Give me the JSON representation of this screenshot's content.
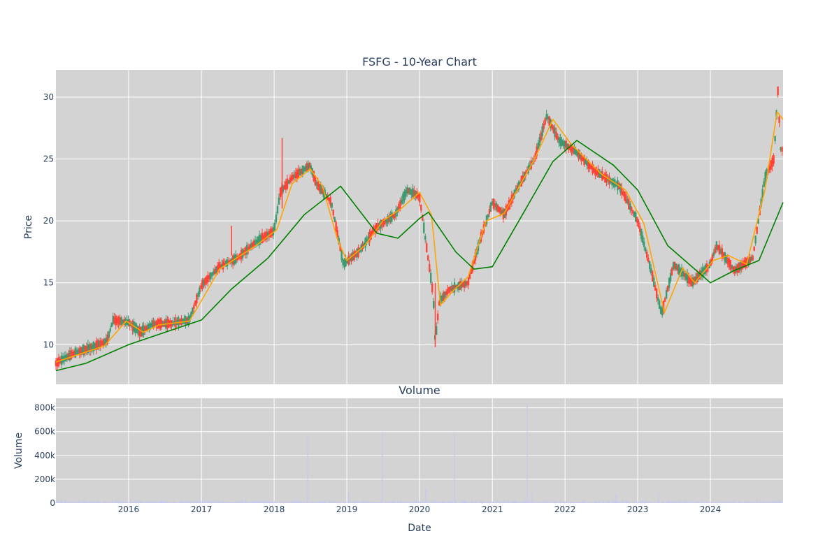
{
  "chart_data": [
    {
      "type": "candlestick",
      "title": "FSFG - 10-Year Chart",
      "ylabel": "Price",
      "ylim": [
        6.8,
        32.2
      ],
      "y_ticks": [
        10,
        15,
        20,
        25,
        30
      ],
      "x_range": [
        "2015-01-01",
        "2024-12-31"
      ],
      "grid": true,
      "legend": "none",
      "colors": {
        "up": "#3d9970",
        "down": "#ff4136",
        "ma_short": "#ffa500",
        "ma_long": "#008000",
        "plot_bg": "#d3d3d3"
      },
      "price_path": [
        [
          "2015-01-01",
          8.5
        ],
        [
          "2015-04-01",
          9.3
        ],
        [
          "2015-07-01",
          9.8
        ],
        [
          "2015-09-15",
          10.3
        ],
        [
          "2015-10-15",
          12.0
        ],
        [
          "2016-01-01",
          11.8
        ],
        [
          "2016-03-01",
          11.0
        ],
        [
          "2016-05-01",
          11.7
        ],
        [
          "2016-08-01",
          11.7
        ],
        [
          "2016-11-01",
          12.0
        ],
        [
          "2017-01-01",
          14.8
        ],
        [
          "2017-04-01",
          16.3
        ],
        [
          "2017-07-01",
          17.0
        ],
        [
          "2017-10-01",
          18.3
        ],
        [
          "2018-01-01",
          19.2
        ],
        [
          "2018-02-01",
          22.3
        ],
        [
          "2018-04-01",
          23.5
        ],
        [
          "2018-07-01",
          24.5
        ],
        [
          "2018-08-01",
          23.0
        ],
        [
          "2018-10-15",
          21.5
        ],
        [
          "2018-12-15",
          16.5
        ],
        [
          "2019-03-01",
          17.5
        ],
        [
          "2019-06-01",
          19.5
        ],
        [
          "2019-09-01",
          20.5
        ],
        [
          "2019-11-01",
          22.5
        ],
        [
          "2020-01-01",
          22.0
        ],
        [
          "2020-03-10",
          14.0
        ],
        [
          "2020-03-20",
          10.2
        ],
        [
          "2020-04-10",
          13.5
        ],
        [
          "2020-06-01",
          14.5
        ],
        [
          "2020-09-01",
          15.0
        ],
        [
          "2020-11-01",
          18.5
        ],
        [
          "2021-01-01",
          21.5
        ],
        [
          "2021-03-01",
          20.5
        ],
        [
          "2021-05-01",
          22.5
        ],
        [
          "2021-08-01",
          25.0
        ],
        [
          "2021-10-01",
          28.5
        ],
        [
          "2021-12-01",
          26.5
        ],
        [
          "2022-03-01",
          25.5
        ],
        [
          "2022-06-01",
          24.0
        ],
        [
          "2022-10-01",
          22.8
        ],
        [
          "2023-01-01",
          20.0
        ],
        [
          "2023-03-01",
          16.5
        ],
        [
          "2023-05-01",
          12.5
        ],
        [
          "2023-07-01",
          16.5
        ],
        [
          "2023-10-01",
          15.0
        ],
        [
          "2024-01-01",
          16.5
        ],
        [
          "2024-02-01",
          18.0
        ],
        [
          "2024-05-01",
          16.0
        ],
        [
          "2024-08-01",
          17.0
        ],
        [
          "2024-10-01",
          23.5
        ],
        [
          "2024-11-15",
          25.0
        ],
        [
          "2024-12-05",
          30.5
        ],
        [
          "2024-12-20",
          25.5
        ],
        [
          "2024-12-31",
          26.0
        ]
      ],
      "price_spikes": [
        {
          "date": "2018-02-10",
          "high": 26.7,
          "low": 21.0
        },
        {
          "date": "2020-03-20",
          "high": 15.0,
          "low": 9.8
        },
        {
          "date": "2017-06-01",
          "high": 19.6,
          "low": 17.2
        }
      ],
      "ma_short_path": [
        [
          "2015-01-01",
          8.6
        ],
        [
          "2015-09-01",
          9.9
        ],
        [
          "2015-12-20",
          11.9
        ],
        [
          "2016-03-15",
          11.0
        ],
        [
          "2016-06-01",
          11.6
        ],
        [
          "2016-11-01",
          11.9
        ],
        [
          "2017-01-10",
          13.8
        ],
        [
          "2017-04-01",
          16.1
        ],
        [
          "2017-10-01",
          18.0
        ],
        [
          "2018-01-15",
          19.3
        ],
        [
          "2018-04-01",
          23.0
        ],
        [
          "2018-07-01",
          24.2
        ],
        [
          "2018-09-01",
          22.8
        ],
        [
          "2018-11-15",
          18.5
        ],
        [
          "2019-01-01",
          16.8
        ],
        [
          "2019-04-01",
          18.0
        ],
        [
          "2019-07-01",
          20.0
        ],
        [
          "2019-10-01",
          21.0
        ],
        [
          "2020-01-01",
          22.3
        ],
        [
          "2020-03-01",
          20.5
        ],
        [
          "2020-04-15",
          13.2
        ],
        [
          "2020-06-15",
          14.3
        ],
        [
          "2020-09-01",
          15.5
        ],
        [
          "2020-12-01",
          20.0
        ],
        [
          "2021-03-01",
          20.6
        ],
        [
          "2021-08-01",
          25.0
        ],
        [
          "2021-11-01",
          28.2
        ],
        [
          "2022-02-01",
          26.2
        ],
        [
          "2022-07-01",
          23.8
        ],
        [
          "2022-11-01",
          22.5
        ],
        [
          "2023-02-01",
          19.8
        ],
        [
          "2023-05-15",
          12.6
        ],
        [
          "2023-08-15",
          16.2
        ],
        [
          "2023-10-15",
          15.0
        ],
        [
          "2024-01-15",
          16.8
        ],
        [
          "2024-04-01",
          17.2
        ],
        [
          "2024-07-01",
          16.5
        ],
        [
          "2024-10-01",
          22.5
        ],
        [
          "2024-12-01",
          28.8
        ],
        [
          "2024-12-31",
          28.2
        ]
      ],
      "ma_long_path": [
        [
          "2015-01-01",
          7.9
        ],
        [
          "2015-06-01",
          8.5
        ],
        [
          "2016-01-01",
          10.0
        ],
        [
          "2016-07-01",
          11.0
        ],
        [
          "2017-01-01",
          12.0
        ],
        [
          "2017-06-01",
          14.5
        ],
        [
          "2017-12-01",
          17.0
        ],
        [
          "2018-06-01",
          20.5
        ],
        [
          "2018-12-01",
          22.8
        ],
        [
          "2019-06-01",
          19.0
        ],
        [
          "2019-09-15",
          18.6
        ],
        [
          "2020-01-01",
          20.2
        ],
        [
          "2020-02-15",
          20.7
        ],
        [
          "2020-07-01",
          17.5
        ],
        [
          "2020-10-01",
          16.1
        ],
        [
          "2021-01-01",
          16.3
        ],
        [
          "2021-06-01",
          20.5
        ],
        [
          "2021-11-01",
          24.8
        ],
        [
          "2022-03-01",
          26.5
        ],
        [
          "2022-09-01",
          24.5
        ],
        [
          "2023-01-01",
          22.5
        ],
        [
          "2023-06-01",
          18.0
        ],
        [
          "2024-01-01",
          15.0
        ],
        [
          "2024-05-01",
          16.0
        ],
        [
          "2024-09-01",
          16.8
        ],
        [
          "2024-12-31",
          21.5
        ]
      ]
    },
    {
      "type": "bar",
      "title": "Volume",
      "ylabel": "Volume",
      "xlabel": "Date",
      "ylim": [
        0,
        880000
      ],
      "y_ticks": [
        {
          "value": 0,
          "label": "0"
        },
        {
          "value": 200000,
          "label": "200k"
        },
        {
          "value": 400000,
          "label": "400k"
        },
        {
          "value": 600000,
          "label": "600k"
        },
        {
          "value": 800000,
          "label": "800k"
        }
      ],
      "x_ticks": [
        {
          "date": "2016-01-01",
          "label": "2016"
        },
        {
          "date": "2017-01-01",
          "label": "2017"
        },
        {
          "date": "2018-01-01",
          "label": "2018"
        },
        {
          "date": "2019-01-01",
          "label": "2019"
        },
        {
          "date": "2020-01-01",
          "label": "2020"
        },
        {
          "date": "2021-01-01",
          "label": "2021"
        },
        {
          "date": "2022-01-01",
          "label": "2022"
        },
        {
          "date": "2023-01-01",
          "label": "2023"
        },
        {
          "date": "2024-01-01",
          "label": "2024"
        }
      ],
      "color": "#c8c8f0",
      "volume_spikes": [
        {
          "date": "2018-06-18",
          "value": 550000
        },
        {
          "date": "2019-06-28",
          "value": 590000
        },
        {
          "date": "2020-06-25",
          "value": 590000
        },
        {
          "date": "2021-06-25",
          "value": 830000
        },
        {
          "date": "2021-07-20",
          "value": 100000
        },
        {
          "date": "2020-02-01",
          "value": 120000
        },
        {
          "date": "2019-01-10",
          "value": 80000
        },
        {
          "date": "2023-04-15",
          "value": 75000
        },
        {
          "date": "2022-09-15",
          "value": 70000
        }
      ]
    }
  ]
}
